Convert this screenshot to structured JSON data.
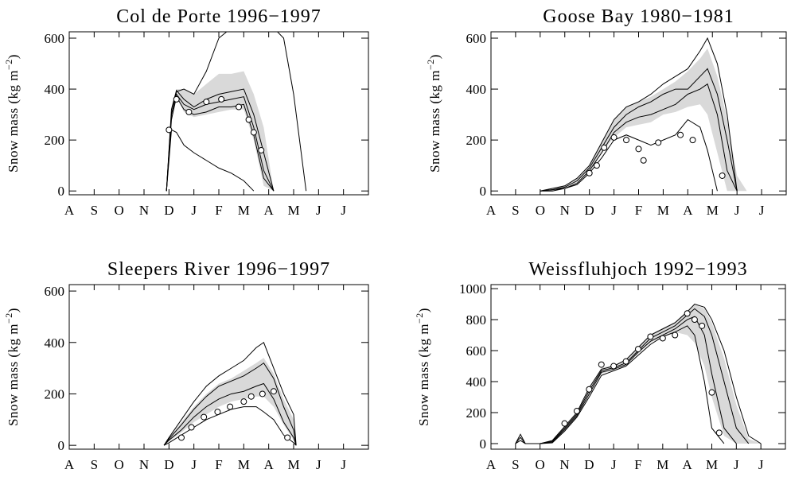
{
  "chart_data": [
    {
      "type": "line",
      "title": "Col de Porte 1996−1997",
      "y_label": "Snow mass (kg m",
      "y_label_sup": "−2",
      "y_label_end": ")",
      "x": [
        3.9,
        4.1,
        4.3,
        4.6,
        5.0,
        5.5,
        6.0,
        6.5,
        7.0,
        7.4,
        7.8,
        8.2,
        8.6,
        9.0,
        9.5
      ],
      "series": [
        {
          "color": "#000000",
          "values": [
            0,
            300,
            390,
            400,
            380,
            470,
            600,
            640,
            650,
            650,
            650,
            640,
            600,
            380,
            0
          ]
        },
        {
          "color": "#000000",
          "values": [
            0,
            320,
            395,
            360,
            330,
            360,
            380,
            390,
            400,
            300,
            150,
            0,
            null,
            null,
            null
          ]
        },
        {
          "color": "#000000",
          "values": [
            0,
            300,
            380,
            340,
            320,
            340,
            350,
            360,
            370,
            250,
            80,
            0,
            null,
            null,
            null
          ]
        },
        {
          "color": "#000000",
          "values": [
            0,
            280,
            370,
            320,
            300,
            310,
            330,
            330,
            340,
            220,
            50,
            0,
            null,
            null,
            null
          ]
        },
        {
          "color": "#000000",
          "values": [
            0,
            240,
            230,
            180,
            150,
            120,
            90,
            70,
            40,
            0,
            null,
            null,
            null,
            null,
            null
          ]
        }
      ],
      "band": {
        "color": "#d9d9d9",
        "lower": [
          0,
          290,
          370,
          310,
          290,
          300,
          310,
          320,
          320,
          200,
          20,
          0,
          null,
          null,
          null
        ],
        "upper": [
          0,
          330,
          400,
          400,
          380,
          420,
          460,
          460,
          470,
          380,
          250,
          0,
          null,
          null,
          null
        ]
      },
      "observations": {
        "x": [
          4.0,
          4.3,
          4.8,
          5.5,
          6.1,
          6.8,
          7.2,
          7.4,
          7.7
        ],
        "y": [
          240,
          360,
          310,
          350,
          360,
          330,
          280,
          230,
          160
        ]
      },
      "xlim": [
        0,
        12
      ],
      "ylim": [
        -15,
        625
      ],
      "xticks": [
        {
          "value": 0,
          "label": "A"
        },
        {
          "value": 1,
          "label": "S"
        },
        {
          "value": 2,
          "label": "O"
        },
        {
          "value": 3,
          "label": "N"
        },
        {
          "value": 4,
          "label": "D"
        },
        {
          "value": 5,
          "label": "J"
        },
        {
          "value": 6,
          "label": "F"
        },
        {
          "value": 7,
          "label": "M"
        },
        {
          "value": 8,
          "label": "A"
        },
        {
          "value": 9,
          "label": "M"
        },
        {
          "value": 10,
          "label": "J"
        },
        {
          "value": 11,
          "label": "J"
        }
      ],
      "yticks": [
        0,
        200,
        400,
        600
      ]
    },
    {
      "type": "line",
      "title": "Goose Bay 1980−1981",
      "y_label": "Snow mass (kg m",
      "y_label_sup": "−2",
      "y_label_end": ")",
      "x": [
        2.0,
        2.5,
        3.0,
        3.5,
        4.0,
        4.5,
        5.0,
        5.5,
        6.0,
        6.5,
        7.0,
        7.5,
        8.0,
        8.5,
        8.8,
        9.2,
        9.6,
        10.0,
        10.4
      ],
      "series": [
        {
          "color": "#000000",
          "values": [
            0,
            10,
            20,
            50,
            100,
            190,
            280,
            330,
            350,
            380,
            420,
            450,
            480,
            550,
            600,
            500,
            300,
            0,
            null
          ]
        },
        {
          "color": "#000000",
          "values": [
            0,
            5,
            15,
            40,
            90,
            170,
            250,
            300,
            330,
            350,
            380,
            400,
            400,
            450,
            480,
            380,
            200,
            0,
            null
          ]
        },
        {
          "color": "#000000",
          "values": [
            0,
            5,
            10,
            30,
            80,
            150,
            230,
            270,
            290,
            300,
            320,
            340,
            380,
            400,
            420,
            300,
            80,
            0,
            null
          ]
        },
        {
          "color": "#000000",
          "values": [
            0,
            0,
            10,
            25,
            70,
            130,
            200,
            220,
            200,
            180,
            200,
            220,
            280,
            250,
            160,
            0,
            null,
            null,
            null
          ]
        }
      ],
      "band": {
        "color": "#d9d9d9",
        "lower": [
          0,
          0,
          10,
          30,
          70,
          150,
          210,
          250,
          260,
          270,
          300,
          310,
          330,
          340,
          300,
          150,
          0,
          0,
          0
        ],
        "upper": [
          0,
          10,
          20,
          50,
          100,
          190,
          280,
          330,
          350,
          370,
          400,
          430,
          470,
          520,
          560,
          450,
          280,
          60,
          0
        ]
      },
      "observations": {
        "x": [
          4.0,
          4.3,
          4.6,
          5.0,
          5.5,
          6.0,
          6.2,
          6.8,
          7.7,
          8.2,
          9.4
        ],
        "y": [
          70,
          100,
          170,
          210,
          200,
          165,
          120,
          190,
          220,
          200,
          60
        ]
      },
      "xlim": [
        0,
        12
      ],
      "ylim": [
        -15,
        625
      ],
      "xticks": [
        {
          "value": 0,
          "label": "A"
        },
        {
          "value": 1,
          "label": "S"
        },
        {
          "value": 2,
          "label": "O"
        },
        {
          "value": 3,
          "label": "N"
        },
        {
          "value": 4,
          "label": "D"
        },
        {
          "value": 5,
          "label": "J"
        },
        {
          "value": 6,
          "label": "F"
        },
        {
          "value": 7,
          "label": "M"
        },
        {
          "value": 8,
          "label": "A"
        },
        {
          "value": 9,
          "label": "M"
        },
        {
          "value": 10,
          "label": "J"
        },
        {
          "value": 11,
          "label": "J"
        }
      ],
      "yticks": [
        0,
        200,
        400,
        600
      ]
    },
    {
      "type": "line",
      "title": "Sleepers River 1996−1997",
      "y_label": "Snow mass (kg m",
      "y_label_sup": "−2",
      "y_label_end": ")",
      "x": [
        3.8,
        4.0,
        4.5,
        5.0,
        5.5,
        6.0,
        6.5,
        7.0,
        7.5,
        7.8,
        8.2,
        8.6,
        9.0,
        9.1
      ],
      "series": [
        {
          "color": "#000000",
          "values": [
            0,
            30,
            100,
            170,
            230,
            270,
            300,
            330,
            380,
            400,
            300,
            200,
            120,
            0
          ]
        },
        {
          "color": "#000000",
          "values": [
            0,
            25,
            80,
            140,
            190,
            230,
            250,
            270,
            300,
            320,
            260,
            150,
            60,
            0
          ]
        },
        {
          "color": "#000000",
          "values": [
            0,
            20,
            60,
            110,
            150,
            180,
            200,
            210,
            230,
            240,
            180,
            90,
            30,
            0
          ]
        },
        {
          "color": "#000000",
          "values": [
            0,
            10,
            40,
            70,
            100,
            120,
            140,
            150,
            150,
            130,
            100,
            40,
            10,
            0
          ]
        }
      ],
      "band": {
        "color": "#d9d9d9",
        "lower": [
          0,
          15,
          50,
          90,
          120,
          150,
          170,
          180,
          190,
          190,
          150,
          80,
          20,
          0
        ],
        "upper": [
          0,
          30,
          90,
          150,
          200,
          240,
          260,
          290,
          320,
          340,
          280,
          180,
          100,
          0
        ]
      },
      "observations": {
        "x": [
          4.5,
          4.9,
          5.4,
          5.95,
          6.45,
          7.0,
          7.3,
          7.75,
          8.2,
          8.75
        ],
        "y": [
          30,
          70,
          110,
          130,
          150,
          170,
          190,
          200,
          210,
          30
        ]
      },
      "xlim": [
        0,
        12
      ],
      "ylim": [
        -15,
        625
      ],
      "xticks": [
        {
          "value": 0,
          "label": "A"
        },
        {
          "value": 1,
          "label": "S"
        },
        {
          "value": 2,
          "label": "O"
        },
        {
          "value": 3,
          "label": "N"
        },
        {
          "value": 4,
          "label": "D"
        },
        {
          "value": 5,
          "label": "J"
        },
        {
          "value": 6,
          "label": "F"
        },
        {
          "value": 7,
          "label": "M"
        },
        {
          "value": 8,
          "label": "A"
        },
        {
          "value": 9,
          "label": "M"
        },
        {
          "value": 10,
          "label": "J"
        },
        {
          "value": 11,
          "label": "J"
        }
      ],
      "yticks": [
        0,
        200,
        400,
        600
      ]
    },
    {
      "type": "line",
      "title": "Weissfluhjoch 1992−1993",
      "y_label": "Snow mass (kg m",
      "y_label_sup": "−2",
      "y_label_end": ")",
      "x": [
        1.0,
        1.2,
        1.4,
        2.0,
        2.5,
        3.0,
        3.5,
        4.0,
        4.5,
        5.0,
        5.5,
        6.0,
        6.5,
        7.0,
        7.5,
        8.0,
        8.3,
        8.7,
        9.0,
        9.5,
        10.0,
        10.5,
        11.0
      ],
      "series": [
        {
          "color": "#000000",
          "values": [
            0,
            60,
            0,
            0,
            20,
            110,
            200,
            360,
            480,
            500,
            540,
            620,
            700,
            740,
            780,
            850,
            900,
            880,
            800,
            600,
            300,
            50,
            0
          ]
        },
        {
          "color": "#000000",
          "values": [
            0,
            40,
            0,
            0,
            15,
            100,
            190,
            340,
            470,
            490,
            520,
            600,
            680,
            720,
            760,
            830,
            870,
            820,
            700,
            400,
            100,
            0,
            null
          ]
        },
        {
          "color": "#000000",
          "values": [
            0,
            20,
            0,
            0,
            10,
            90,
            180,
            320,
            460,
            480,
            510,
            590,
            660,
            700,
            740,
            800,
            820,
            700,
            450,
            100,
            0,
            null,
            null
          ]
        },
        {
          "color": "#000000",
          "values": [
            null,
            null,
            null,
            0,
            5,
            80,
            170,
            300,
            440,
            470,
            500,
            570,
            640,
            690,
            720,
            760,
            700,
            400,
            100,
            0,
            null,
            null,
            null
          ]
        }
      ],
      "band": {
        "color": "#d9d9d9",
        "lower": [
          null,
          null,
          null,
          0,
          5,
          85,
          170,
          310,
          450,
          475,
          505,
          580,
          650,
          690,
          720,
          700,
          650,
          500,
          300,
          50,
          0,
          0,
          0
        ],
        "upper": [
          null,
          null,
          null,
          0,
          20,
          110,
          200,
          360,
          490,
          505,
          545,
          625,
          705,
          745,
          785,
          860,
          900,
          870,
          780,
          550,
          250,
          30,
          0
        ]
      },
      "observations": {
        "x": [
          3.0,
          3.5,
          4.0,
          4.5,
          5.0,
          5.5,
          6.0,
          6.5,
          7.0,
          7.5,
          8.0,
          8.3,
          8.6,
          9.0,
          9.3
        ],
        "y": [
          130,
          210,
          350,
          510,
          500,
          530,
          610,
          690,
          680,
          700,
          840,
          800,
          760,
          330,
          70
        ]
      },
      "xlim": [
        0,
        12
      ],
      "ylim": [
        -36,
        1026
      ],
      "xticks": [
        {
          "value": 0,
          "label": "A"
        },
        {
          "value": 1,
          "label": "S"
        },
        {
          "value": 2,
          "label": "O"
        },
        {
          "value": 3,
          "label": "N"
        },
        {
          "value": 4,
          "label": "D"
        },
        {
          "value": 5,
          "label": "J"
        },
        {
          "value": 6,
          "label": "F"
        },
        {
          "value": 7,
          "label": "M"
        },
        {
          "value": 8,
          "label": "A"
        },
        {
          "value": 9,
          "label": "M"
        },
        {
          "value": 10,
          "label": "J"
        },
        {
          "value": 11,
          "label": "J"
        }
      ],
      "yticks": [
        0,
        200,
        400,
        600,
        800,
        1000
      ]
    }
  ]
}
